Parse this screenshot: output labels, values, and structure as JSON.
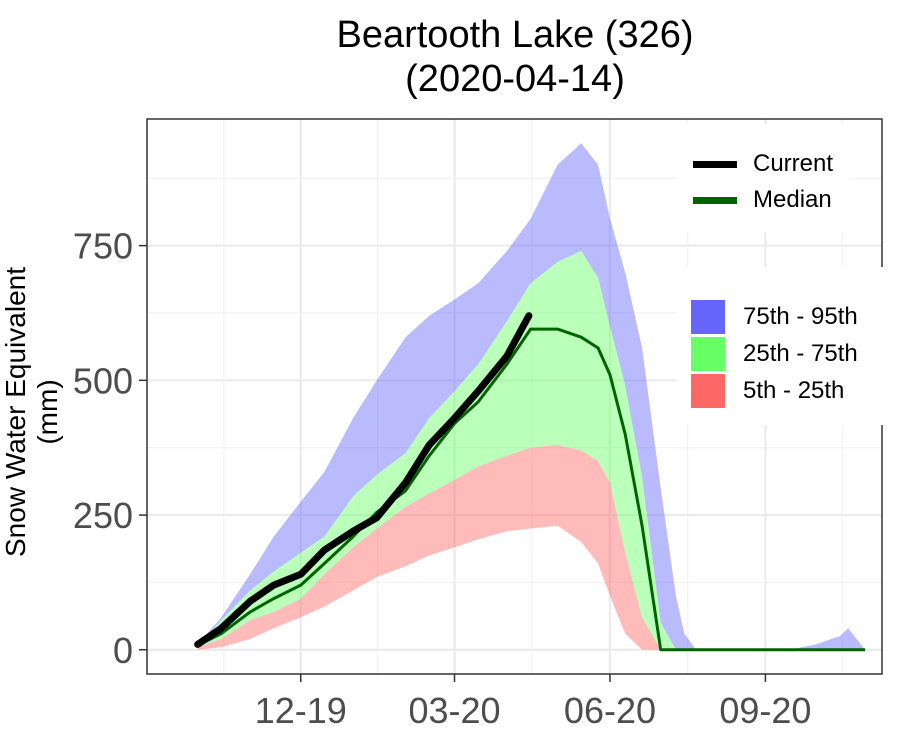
{
  "chart_data": {
    "type": "area",
    "title": "Beartooth Lake (326)",
    "subtitle": "(2020-04-14)",
    "xlabel": "",
    "ylabel": "Snow Water Equivalent (mm)",
    "x_ticks": [
      "12-19",
      "03-20",
      "06-20",
      "09-20"
    ],
    "y_ticks": [
      0,
      250,
      500,
      750
    ],
    "ylim": [
      -45,
      985
    ],
    "grid": true,
    "colors": {
      "current": "#000000",
      "median": "#006400",
      "band_75_95": "#6666ff",
      "band_25_75": "#66ff66",
      "band_5_25": "#ff6666"
    },
    "x": [
      "2019-10-01",
      "2019-10-15",
      "2019-11-01",
      "2019-11-15",
      "2019-12-01",
      "2019-12-15",
      "2020-01-01",
      "2020-01-15",
      "2020-02-01",
      "2020-02-15",
      "2020-03-01",
      "2020-03-15",
      "2020-04-01",
      "2020-04-15",
      "2020-05-01",
      "2020-05-15",
      "2020-05-25",
      "2020-06-01",
      "2020-06-10",
      "2020-06-20",
      "2020-07-01",
      "2020-07-10",
      "2020-07-15",
      "2020-07-22",
      "2020-07-25",
      "2020-08-01",
      "2020-08-15",
      "2020-09-01",
      "2020-09-15",
      "2020-10-01",
      "2020-10-10",
      "2020-10-15",
      "2020-10-20",
      "2020-10-30"
    ],
    "series": [
      {
        "name": "Current",
        "x": [
          "2019-10-01",
          "2019-10-15",
          "2019-11-01",
          "2019-11-15",
          "2019-12-01",
          "2019-12-15",
          "2020-01-01",
          "2020-01-15",
          "2020-02-01",
          "2020-02-15",
          "2020-03-01",
          "2020-03-15",
          "2020-04-01",
          "2020-04-14"
        ],
        "values": [
          10,
          40,
          90,
          120,
          140,
          185,
          220,
          245,
          310,
          380,
          430,
          480,
          545,
          620
        ]
      },
      {
        "name": "Median",
        "values": [
          8,
          30,
          70,
          95,
          120,
          160,
          210,
          255,
          295,
          360,
          420,
          460,
          530,
          595,
          595,
          580,
          560,
          510,
          400,
          230,
          0,
          0,
          0,
          0,
          0,
          0,
          0,
          0,
          0,
          0,
          0,
          0,
          0,
          0
        ]
      },
      {
        "name": "75th - 95th",
        "lower": [
          5,
          55,
          110,
          145,
          180,
          210,
          285,
          325,
          365,
          430,
          480,
          530,
          610,
          680,
          720,
          740,
          690,
          600,
          490,
          320,
          50,
          0,
          0,
          0,
          0,
          0,
          0,
          0,
          0,
          0,
          0,
          0,
          0,
          0
        ],
        "upper": [
          10,
          60,
          140,
          210,
          275,
          330,
          430,
          500,
          580,
          620,
          650,
          680,
          740,
          800,
          900,
          940,
          900,
          800,
          700,
          560,
          300,
          100,
          30,
          0,
          0,
          0,
          0,
          0,
          0,
          10,
          20,
          25,
          40,
          0
        ]
      },
      {
        "name": "25th - 75th",
        "lower": [
          5,
          20,
          55,
          70,
          95,
          140,
          190,
          225,
          265,
          290,
          315,
          340,
          360,
          375,
          380,
          370,
          350,
          310,
          180,
          60,
          0,
          0,
          0,
          0,
          0,
          0,
          0,
          0,
          0,
          0,
          0,
          0,
          0,
          0
        ],
        "upper": [
          5,
          55,
          110,
          145,
          180,
          210,
          285,
          325,
          365,
          430,
          480,
          530,
          610,
          680,
          720,
          740,
          690,
          600,
          490,
          320,
          50,
          0,
          0,
          0,
          0,
          0,
          0,
          0,
          0,
          0,
          0,
          0,
          0,
          0
        ]
      },
      {
        "name": "5th - 25th",
        "lower": [
          0,
          5,
          20,
          40,
          60,
          80,
          110,
          135,
          155,
          175,
          190,
          205,
          220,
          225,
          230,
          200,
          160,
          100,
          30,
          0,
          0,
          0,
          0,
          0,
          0,
          0,
          0,
          0,
          0,
          0,
          0,
          0,
          0,
          0
        ],
        "upper": [
          5,
          20,
          55,
          70,
          95,
          140,
          190,
          225,
          265,
          290,
          315,
          340,
          360,
          375,
          380,
          370,
          350,
          310,
          180,
          60,
          0,
          0,
          0,
          0,
          0,
          0,
          0,
          0,
          0,
          0,
          0,
          0,
          0,
          0
        ]
      }
    ],
    "legend": {
      "lines": [
        {
          "label": "Current",
          "color": "#000000"
        },
        {
          "label": "Median",
          "color": "#006400"
        }
      ],
      "bands": [
        {
          "label": "75th - 95th",
          "color": "#6666ff"
        },
        {
          "label": "25th - 75th",
          "color": "#66ff66"
        },
        {
          "label": "5th - 25th",
          "color": "#ff6666"
        }
      ],
      "placement": "top-right"
    }
  }
}
